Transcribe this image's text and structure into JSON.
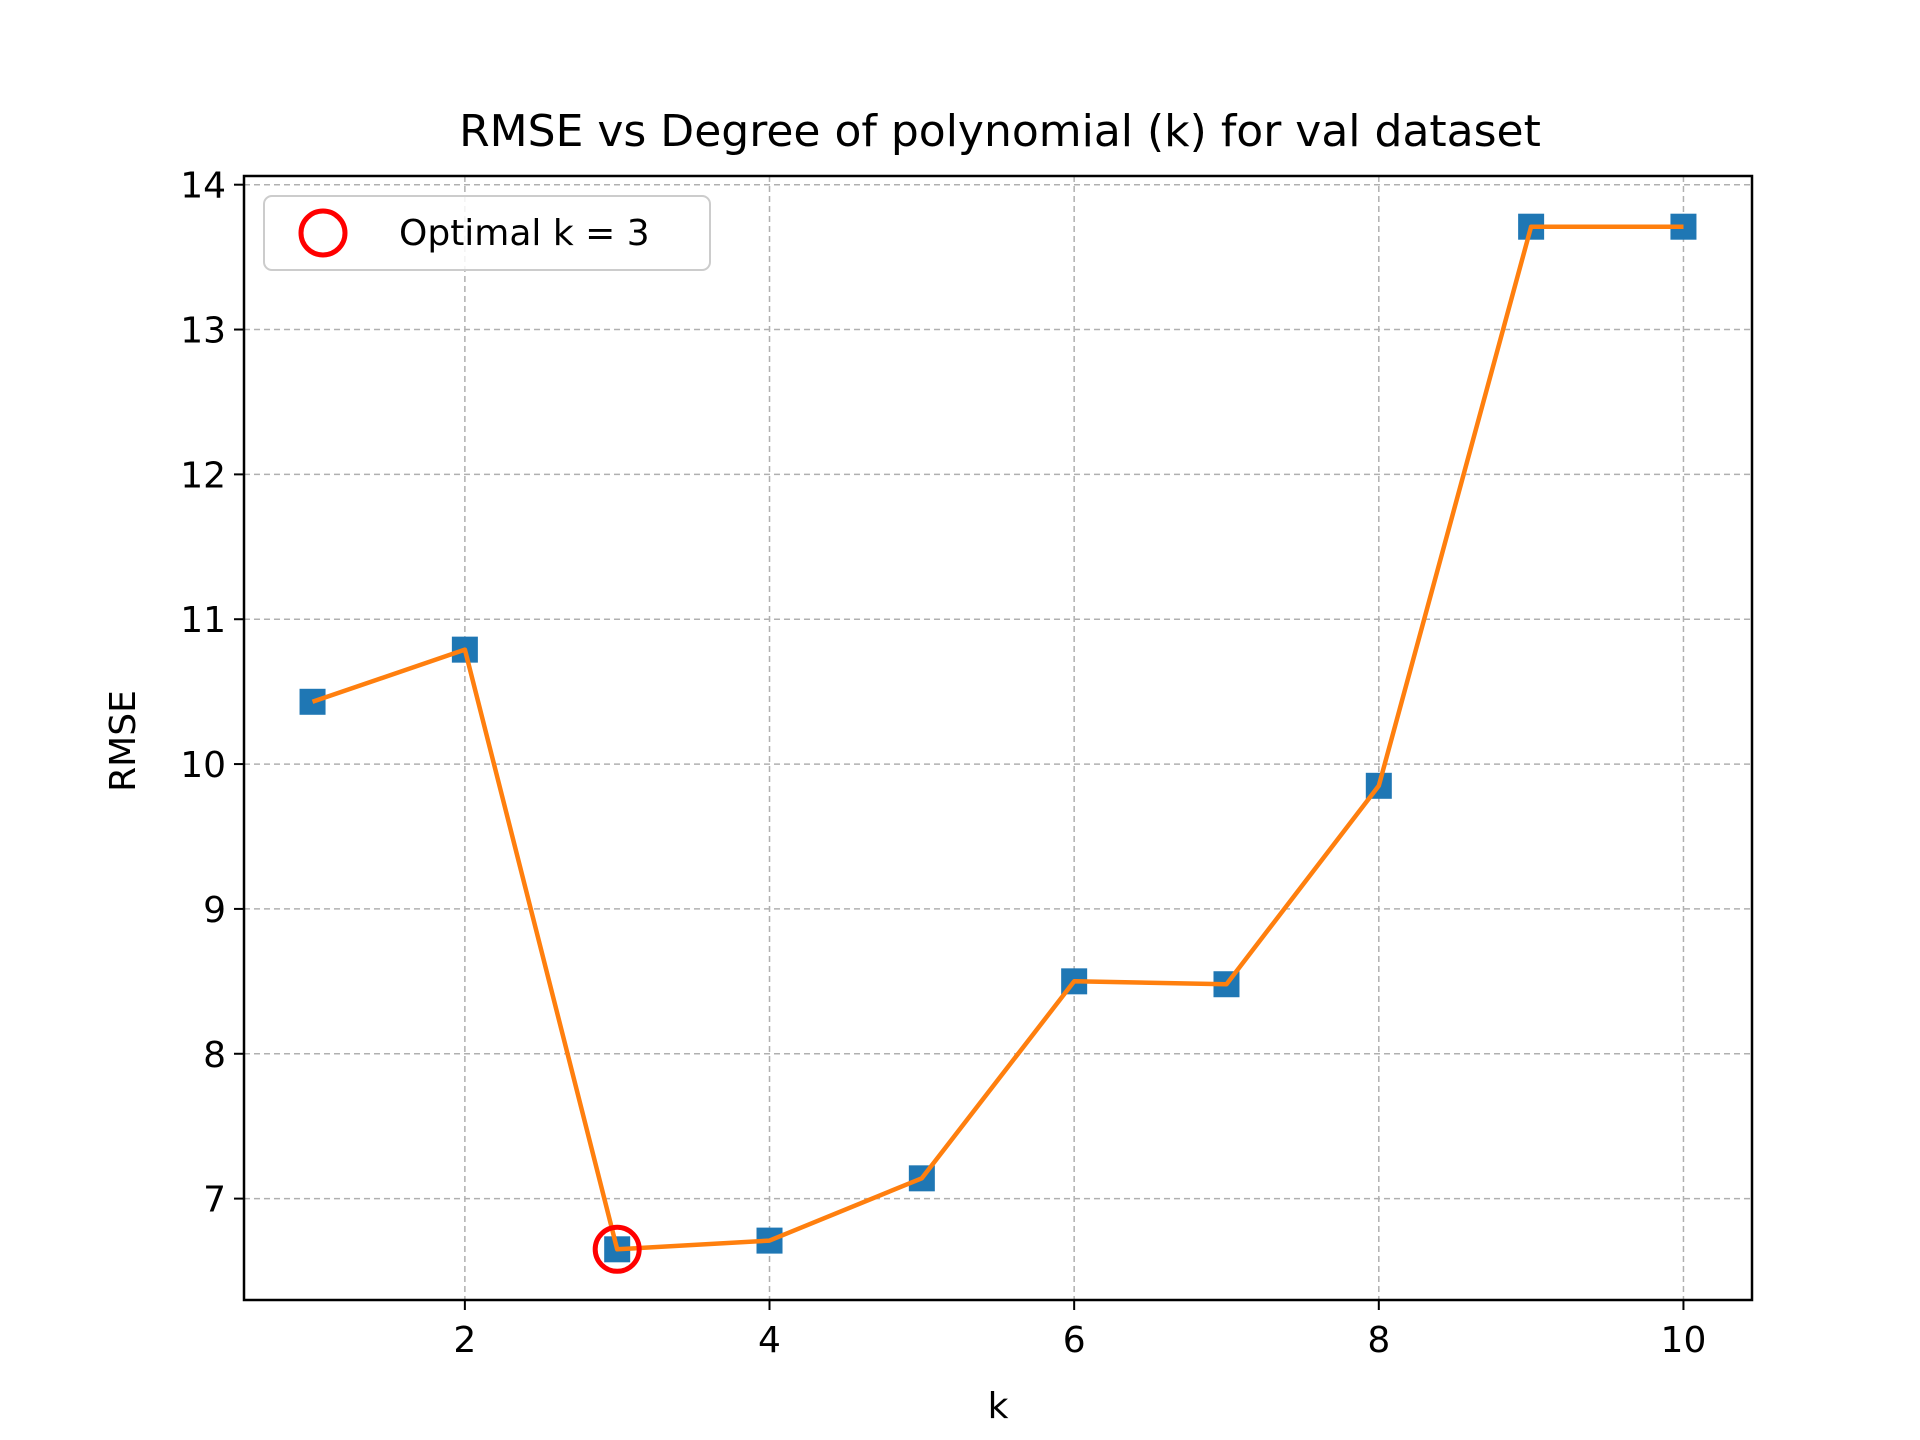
{
  "chart_data": {
    "type": "line",
    "title": "RMSE vs Degree of polynomial (k) for val dataset",
    "xlabel": "k",
    "ylabel": "RMSE",
    "x": [
      1,
      2,
      3,
      4,
      5,
      6,
      7,
      8,
      9,
      10
    ],
    "series": [
      {
        "values": [
          10.43,
          10.79,
          6.65,
          6.71,
          7.14,
          8.5,
          8.48,
          9.85,
          13.71,
          13.71
        ],
        "color": "#ff7f0e",
        "marker": "square",
        "marker_color": "#1f77b4"
      }
    ],
    "highlight": {
      "x": 3,
      "y": 6.65,
      "marker": "open-circle",
      "color": "#ff0000",
      "label": "Optimal k = 3"
    },
    "xlim": [
      0.55,
      10.45
    ],
    "ylim": [
      6.3,
      14.06
    ],
    "xticks": [
      "2",
      "4",
      "6",
      "8",
      "10"
    ],
    "yticks": [
      "7",
      "8",
      "9",
      "10",
      "11",
      "12",
      "13",
      "14"
    ],
    "grid": true,
    "legend_position": "upper-left"
  }
}
